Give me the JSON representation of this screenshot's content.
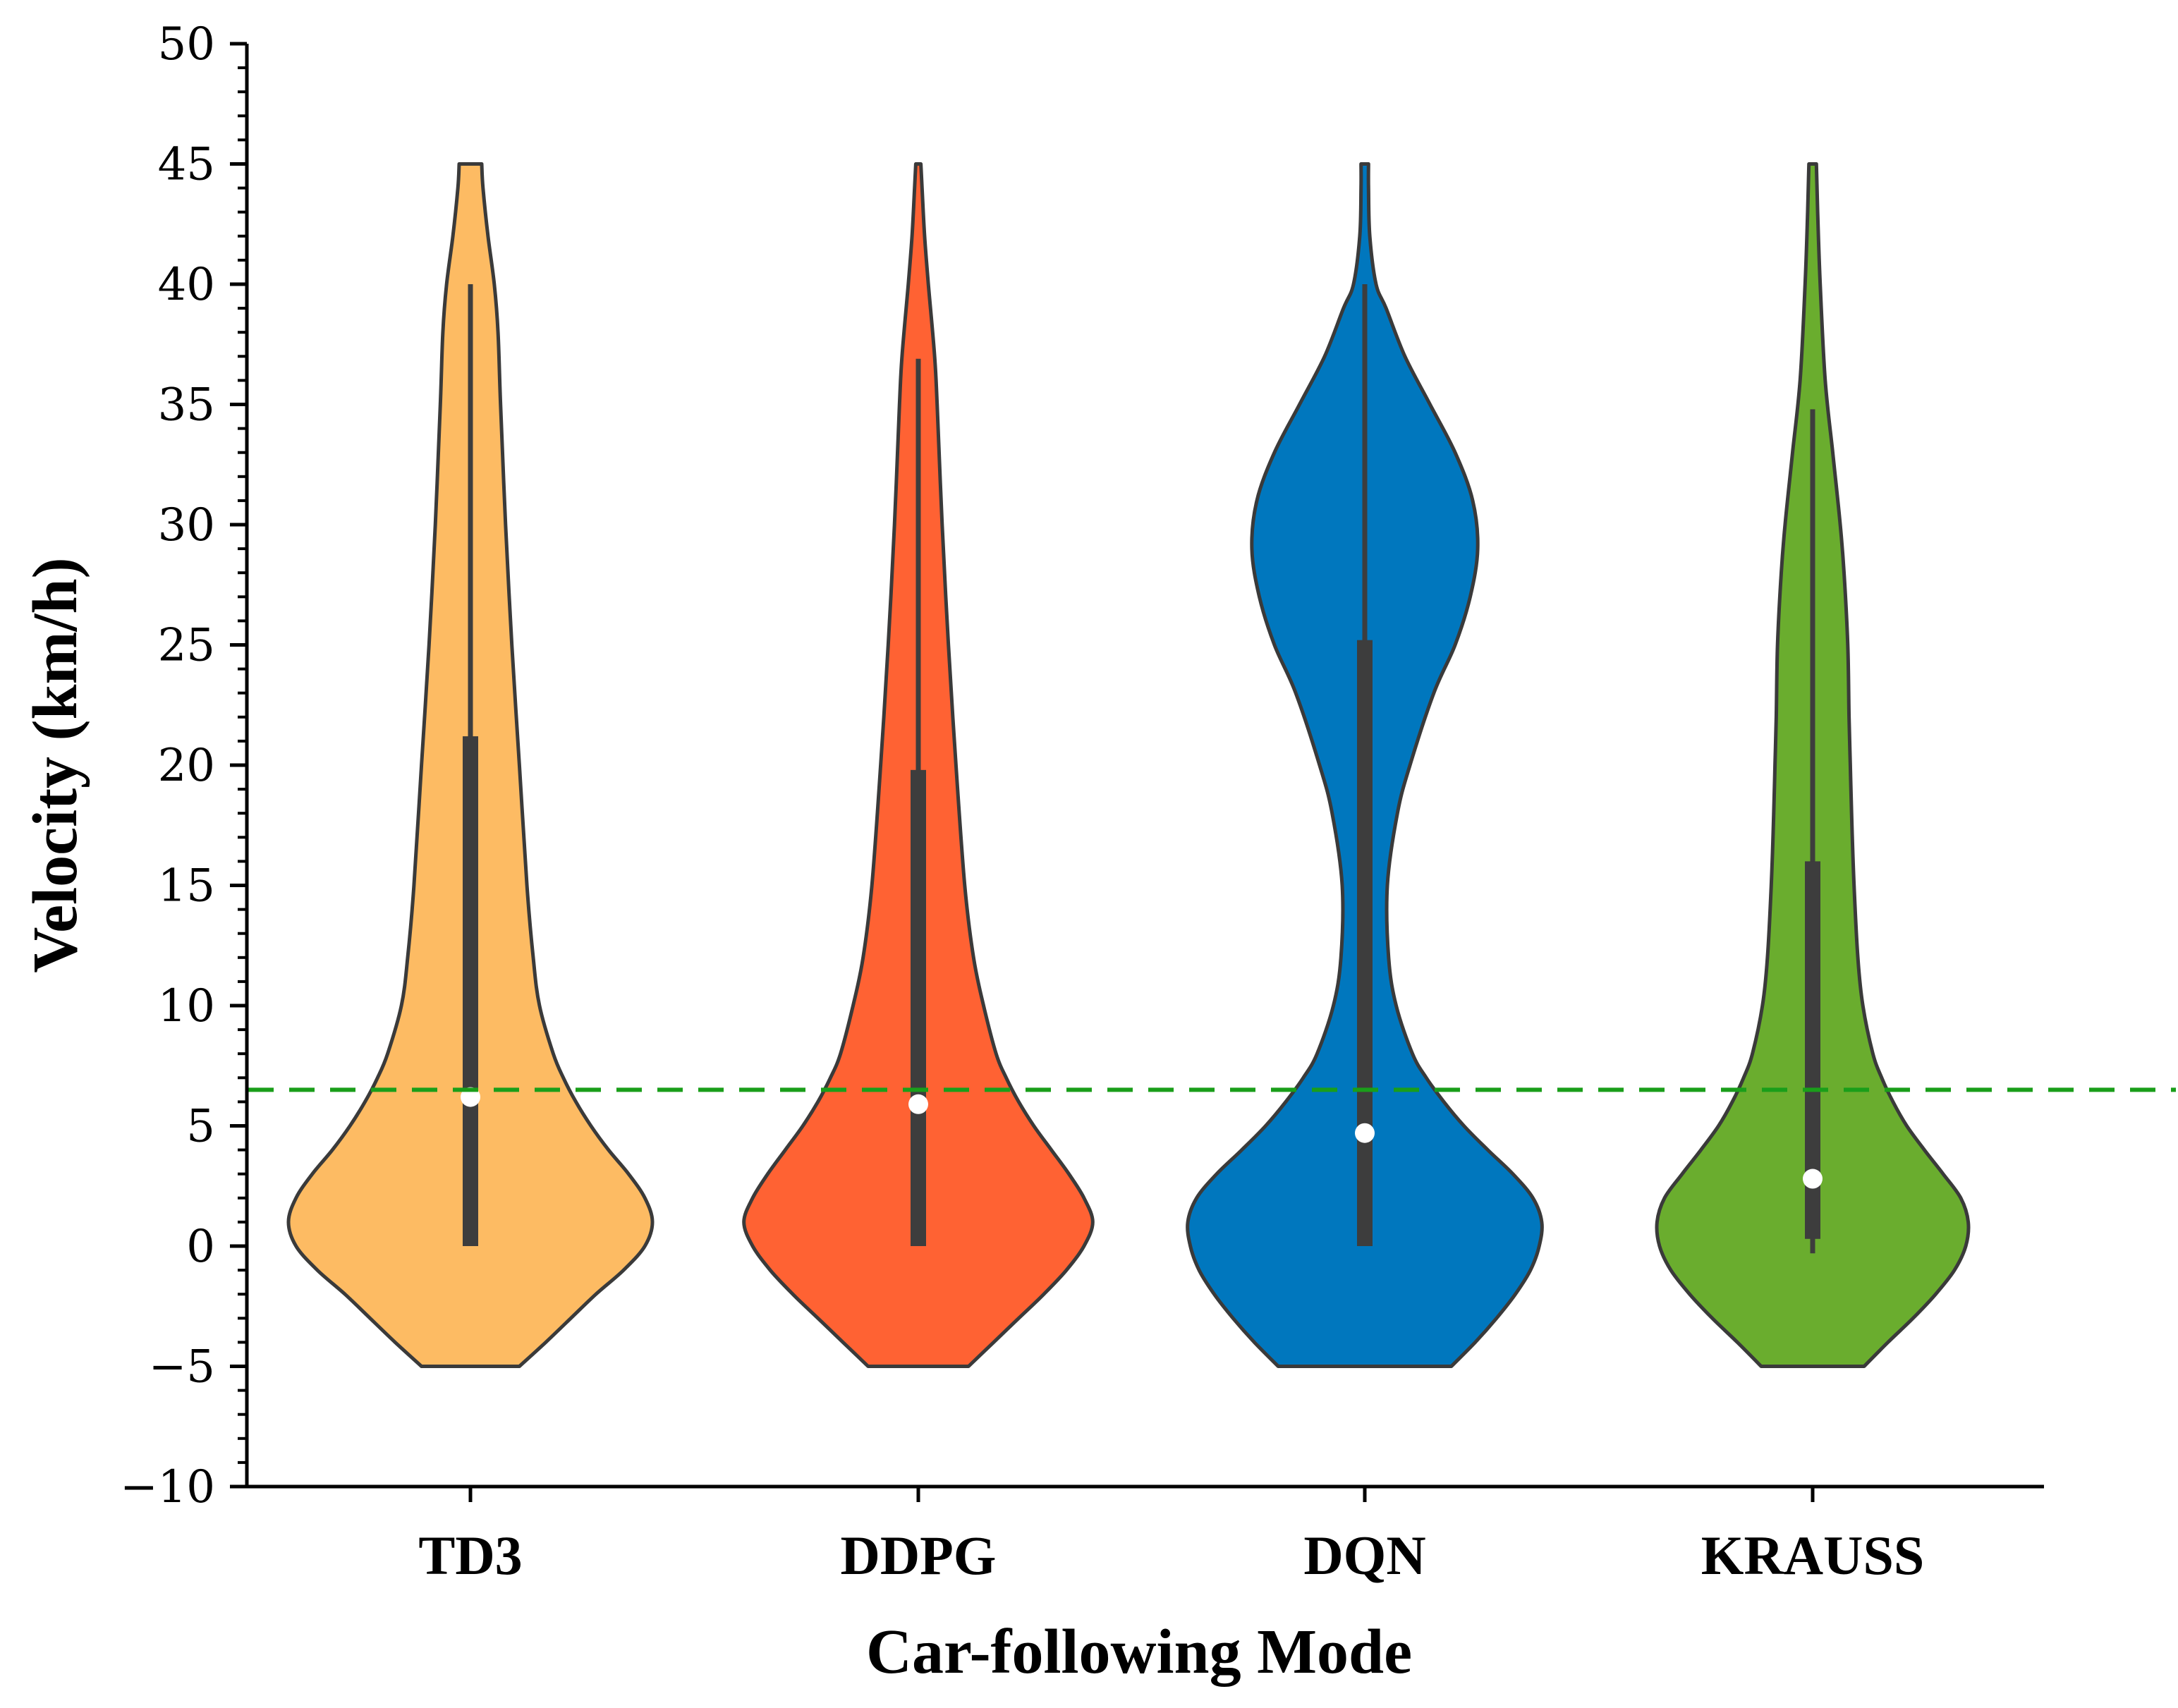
{
  "chart_data": {
    "type": "violin",
    "title": "",
    "xlabel": "Car-following Mode",
    "ylabel": "Velocity (km/h)",
    "ylim": [
      -10,
      50
    ],
    "yticks": [
      -10,
      -5,
      0,
      5,
      10,
      15,
      20,
      25,
      30,
      35,
      40,
      45,
      50
    ],
    "ytick_labels": [
      "−10",
      "−5",
      "0",
      "5",
      "10",
      "15",
      "20",
      "25",
      "30",
      "35",
      "40",
      "45",
      "50"
    ],
    "categories": [
      "TD3",
      "DDPG",
      "DQN",
      "KRAUSS"
    ],
    "reference_line": {
      "value": 6.5,
      "color": "#1a9e1a",
      "style": "dashed"
    },
    "series": [
      {
        "name": "TD3",
        "color": "#FDBB63",
        "median": 6.2,
        "q1": 0,
        "q3": 21.2,
        "whisker_low": 0,
        "whisker_high": 40,
        "density": [
          [
            -5,
            0.39
          ],
          [
            -4,
            0.6
          ],
          [
            -3,
            0.8
          ],
          [
            -2,
            1.0
          ],
          [
            -1,
            1.22
          ],
          [
            0,
            1.39
          ],
          [
            1,
            1.45
          ],
          [
            2,
            1.39
          ],
          [
            3,
            1.26
          ],
          [
            4,
            1.1
          ],
          [
            5,
            0.96
          ],
          [
            6,
            0.84
          ],
          [
            7,
            0.74
          ],
          [
            8,
            0.66
          ],
          [
            10,
            0.55
          ],
          [
            12,
            0.5
          ],
          [
            15,
            0.45
          ],
          [
            20,
            0.39
          ],
          [
            25,
            0.33
          ],
          [
            30,
            0.28
          ],
          [
            35,
            0.24
          ],
          [
            38,
            0.22
          ],
          [
            40,
            0.19
          ],
          [
            42,
            0.14
          ],
          [
            44,
            0.1
          ],
          [
            45,
            0.09
          ]
        ]
      },
      {
        "name": "DDPG",
        "color": "#FF6233",
        "median": 5.9,
        "q1": 0,
        "q3": 19.8,
        "whisker_low": 0,
        "whisker_high": 36.9,
        "density": [
          [
            -5,
            0.4
          ],
          [
            -4,
            0.6
          ],
          [
            -3,
            0.8
          ],
          [
            -2,
            1.0
          ],
          [
            -1,
            1.18
          ],
          [
            0,
            1.32
          ],
          [
            1,
            1.39
          ],
          [
            2,
            1.32
          ],
          [
            3,
            1.2
          ],
          [
            4,
            1.06
          ],
          [
            5,
            0.92
          ],
          [
            6,
            0.8
          ],
          [
            7,
            0.7
          ],
          [
            8,
            0.62
          ],
          [
            10,
            0.52
          ],
          [
            12,
            0.44
          ],
          [
            15,
            0.37
          ],
          [
            20,
            0.3
          ],
          [
            25,
            0.24
          ],
          [
            30,
            0.19
          ],
          [
            35,
            0.15
          ],
          [
            37,
            0.13
          ],
          [
            40,
            0.08
          ],
          [
            42,
            0.05
          ],
          [
            44,
            0.03
          ],
          [
            45,
            0.02
          ]
        ]
      },
      {
        "name": "DQN",
        "color": "#0077BE",
        "median": 4.7,
        "q1": 0,
        "q3": 25.2,
        "whisker_low": 0,
        "whisker_high": 40,
        "density": [
          [
            -5,
            0.69
          ],
          [
            -4,
            0.88
          ],
          [
            -3,
            1.05
          ],
          [
            -2,
            1.2
          ],
          [
            -1,
            1.32
          ],
          [
            0,
            1.39
          ],
          [
            1,
            1.41
          ],
          [
            2,
            1.34
          ],
          [
            3,
            1.18
          ],
          [
            4,
            0.98
          ],
          [
            5,
            0.79
          ],
          [
            6,
            0.63
          ],
          [
            7,
            0.49
          ],
          [
            8,
            0.38
          ],
          [
            10,
            0.25
          ],
          [
            12,
            0.19
          ],
          [
            15,
            0.18
          ],
          [
            18,
            0.26
          ],
          [
            20,
            0.36
          ],
          [
            23,
            0.55
          ],
          [
            25,
            0.72
          ],
          [
            27,
            0.84
          ],
          [
            29,
            0.9
          ],
          [
            31,
            0.86
          ],
          [
            33,
            0.72
          ],
          [
            35,
            0.52
          ],
          [
            37,
            0.32
          ],
          [
            39,
            0.17
          ],
          [
            40,
            0.09
          ],
          [
            42,
            0.04
          ],
          [
            44,
            0.03
          ],
          [
            45,
            0.03
          ]
        ]
      },
      {
        "name": "KRAUSS",
        "color": "#6AAD2E",
        "median": 2.8,
        "q1": 0.3,
        "q3": 16.0,
        "whisker_low": -0.3,
        "whisker_high": 34.8,
        "density": [
          [
            -5,
            0.41
          ],
          [
            -4,
            0.6
          ],
          [
            -3,
            0.8
          ],
          [
            -2,
            0.98
          ],
          [
            -1,
            1.13
          ],
          [
            0,
            1.22
          ],
          [
            1,
            1.24
          ],
          [
            2,
            1.18
          ],
          [
            3,
            1.04
          ],
          [
            4,
            0.89
          ],
          [
            5,
            0.75
          ],
          [
            6,
            0.64
          ],
          [
            7,
            0.55
          ],
          [
            8,
            0.48
          ],
          [
            10,
            0.4
          ],
          [
            12,
            0.36
          ],
          [
            15,
            0.33
          ],
          [
            18,
            0.31
          ],
          [
            20,
            0.3
          ],
          [
            22,
            0.29
          ],
          [
            25,
            0.28
          ],
          [
            28,
            0.25
          ],
          [
            30,
            0.22
          ],
          [
            33,
            0.16
          ],
          [
            36,
            0.1
          ],
          [
            40,
            0.06
          ],
          [
            43,
            0.04
          ],
          [
            45,
            0.03
          ]
        ]
      }
    ]
  }
}
